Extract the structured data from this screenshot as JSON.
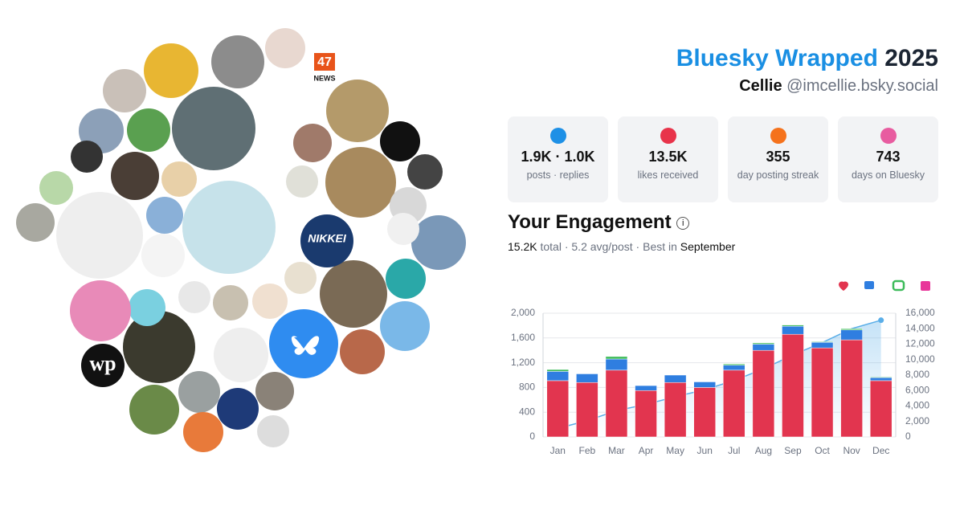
{
  "header": {
    "title": "Bluesky Wrapped",
    "year": "2025",
    "name": "Cellie",
    "handle": "@imcellie.bsky.social"
  },
  "stats": [
    {
      "value": "1.9K · 1.0K",
      "label": "posts · replies",
      "color": "#1e90e6"
    },
    {
      "value": "13.5K",
      "label": "likes received",
      "color": "#e8334a"
    },
    {
      "value": "355",
      "label": "day posting streak",
      "color": "#f5721c"
    },
    {
      "value": "743",
      "label": "days on Bluesky",
      "color": "#e85ca0"
    }
  ],
  "engagement": {
    "title": "Your Engagement",
    "total": "15.2K",
    "middle": " total · 5.2 avg/post · Best in ",
    "best": "September"
  },
  "avatar_texts": [
    "47",
    "NEWS",
    "NIKKEI",
    "wp"
  ],
  "chart_data": {
    "type": "bar",
    "categories": [
      "Jan",
      "Feb",
      "Mar",
      "Apr",
      "May",
      "Jun",
      "Jul",
      "Aug",
      "Sep",
      "Oct",
      "Nov",
      "Dec"
    ],
    "series": [
      {
        "color": "#e2354f",
        "values": [
          910,
          880,
          1080,
          750,
          880,
          800,
          1080,
          1400,
          1660,
          1440,
          1570,
          910
        ]
      },
      {
        "color": "#2f7ee0",
        "values": [
          150,
          140,
          180,
          80,
          120,
          90,
          80,
          100,
          130,
          90,
          160,
          50
        ]
      },
      {
        "color": "#3dbb5a",
        "values": [
          30,
          0,
          40,
          0,
          0,
          0,
          20,
          20,
          20,
          10,
          20,
          10
        ]
      },
      {
        "color": "#5aaee8",
        "axis": "y2",
        "type": "area",
        "values": [
          1100,
          2100,
          3400,
          4200,
          5200,
          6100,
          7300,
          8800,
          10600,
          12200,
          14000,
          15100
        ]
      }
    ],
    "ylim": [
      0,
      2000
    ],
    "yticks": [
      0,
      400,
      800,
      {
        "value": 1200,
        "label": "1,200"
      },
      {
        "value": 1600,
        "label": "1,600"
      },
      {
        "value": 2000,
        "label": "2,000"
      }
    ],
    "y2lim": [
      0,
      16000
    ],
    "y2ticks": [
      0,
      {
        "value": 2000,
        "label": "2,000"
      },
      {
        "value": 4000,
        "label": "4,000"
      },
      {
        "value": 6000,
        "label": "6,000"
      },
      {
        "value": 8000,
        "label": "8,000"
      },
      {
        "value": 10000,
        "label": "10,000"
      },
      {
        "value": 12000,
        "label": "12,000"
      },
      {
        "value": 14000,
        "label": "14,000"
      },
      {
        "value": 16000,
        "label": "16,000"
      }
    ],
    "grid": true
  }
}
